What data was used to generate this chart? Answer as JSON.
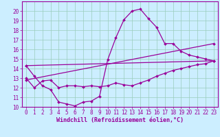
{
  "bg_color": "#cceeff",
  "grid_color": "#99ccbb",
  "line_color": "#990099",
  "marker": "D",
  "markersize": 2.0,
  "linewidth": 0.9,
  "xlabel": "Windchill (Refroidissement éolien,°C)",
  "xlabel_fontsize": 6.0,
  "tick_fontsize": 5.5,
  "ylim": [
    10,
    21
  ],
  "xlim": [
    -0.5,
    23.5
  ],
  "yticks": [
    10,
    11,
    12,
    13,
    14,
    15,
    16,
    17,
    18,
    19,
    20
  ],
  "xticks": [
    0,
    1,
    2,
    3,
    4,
    5,
    6,
    7,
    8,
    9,
    10,
    11,
    12,
    13,
    14,
    15,
    16,
    17,
    18,
    19,
    20,
    21,
    22,
    23
  ],
  "series": [
    {
      "x": [
        0,
        1,
        2,
        3,
        4,
        5,
        6,
        7,
        8,
        9,
        10,
        11,
        12,
        13,
        14,
        15,
        16,
        17,
        18,
        19,
        20,
        21,
        22,
        23
      ],
      "y": [
        14.3,
        13.2,
        12.2,
        11.8,
        10.5,
        10.3,
        10.1,
        10.5,
        10.6,
        11.1,
        14.9,
        17.2,
        19.1,
        20.0,
        20.2,
        19.2,
        18.3,
        16.6,
        16.6,
        15.8,
        15.4,
        15.2,
        15.0,
        14.8
      ]
    },
    {
      "x": [
        0,
        1,
        2,
        3,
        4,
        5,
        6,
        7,
        8,
        9,
        10,
        11,
        12,
        13,
        14,
        15,
        16,
        17,
        18,
        19,
        20,
        21,
        22,
        23
      ],
      "y": [
        13.0,
        12.0,
        12.7,
        12.8,
        12.0,
        12.2,
        12.2,
        12.1,
        12.2,
        12.1,
        12.2,
        12.5,
        12.3,
        12.2,
        12.5,
        12.8,
        13.2,
        13.5,
        13.8,
        14.0,
        14.2,
        14.4,
        14.5,
        14.8
      ]
    },
    {
      "x": [
        0,
        23
      ],
      "y": [
        12.8,
        16.6
      ]
    },
    {
      "x": [
        0,
        23
      ],
      "y": [
        14.3,
        14.8
      ]
    }
  ]
}
